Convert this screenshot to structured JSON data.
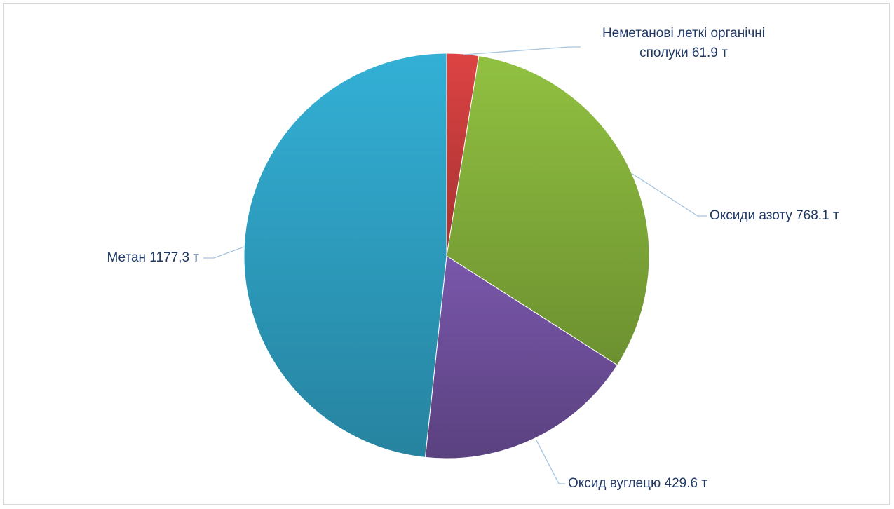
{
  "chart_data": {
    "type": "pie",
    "title": "",
    "slices": [
      {
        "name": "Неметанові леткі органічні сполуки",
        "value": 61.9,
        "label_lines": [
          "Неметанові леткі органічні",
          "сполуки 61.9 т"
        ],
        "color": "#d24040"
      },
      {
        "name": "Оксиди азоту",
        "value": 768.1,
        "label_lines": [
          "Оксиди азоту  768.1 т"
        ],
        "color": "#8ab83e"
      },
      {
        "name": "Оксид вуглецю",
        "value": 429.6,
        "label_lines": [
          "Оксид вуглецю 429.6 т"
        ],
        "color": "#7353a3"
      },
      {
        "name": "Метан",
        "value": 1177.3,
        "label_lines": [
          "Метан 1177,3 т"
        ],
        "color": "#31a8cc"
      }
    ],
    "start_angle": "12 o'clock",
    "direction": "clockwise",
    "legend": "none",
    "data_labels": "outside with leader lines"
  }
}
